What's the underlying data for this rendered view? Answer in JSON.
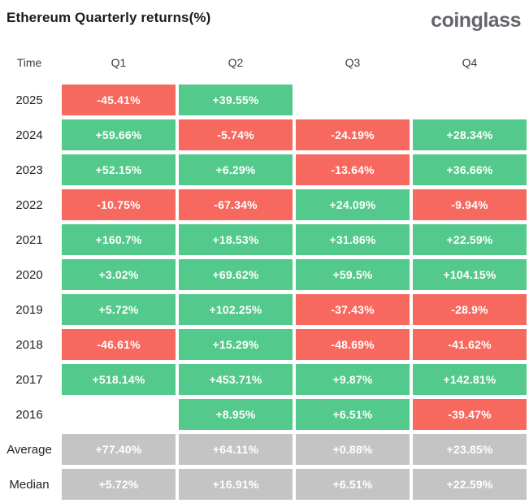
{
  "header": {
    "title": "Ethereum Quarterly returns(%)",
    "logo": "coinglass"
  },
  "colors": {
    "positive": "#53c98b",
    "negative": "#f7685f",
    "summary": "#c4c4c4",
    "cell_text": "#ffffff"
  },
  "table": {
    "columns": [
      "Time",
      "Q1",
      "Q2",
      "Q3",
      "Q4"
    ]
  },
  "chart_data": {
    "type": "table",
    "title": "Ethereum Quarterly returns(%)",
    "columns": [
      "Q1",
      "Q2",
      "Q3",
      "Q4"
    ],
    "unit": "%",
    "legend": "green = positive quarterly return, red = negative quarterly return, gray = summary rows",
    "rows": [
      {
        "label": "2025",
        "kind": "year",
        "display": [
          "-45.41%",
          "+39.55%",
          "",
          ""
        ],
        "values": [
          -45.41,
          39.55,
          null,
          null
        ]
      },
      {
        "label": "2024",
        "kind": "year",
        "display": [
          "+59.66%",
          "-5.74%",
          "-24.19%",
          "+28.34%"
        ],
        "values": [
          59.66,
          -5.74,
          -24.19,
          28.34
        ]
      },
      {
        "label": "2023",
        "kind": "year",
        "display": [
          "+52.15%",
          "+6.29%",
          "-13.64%",
          "+36.66%"
        ],
        "values": [
          52.15,
          6.29,
          -13.64,
          36.66
        ]
      },
      {
        "label": "2022",
        "kind": "year",
        "display": [
          "-10.75%",
          "-67.34%",
          "+24.09%",
          "-9.94%"
        ],
        "values": [
          -10.75,
          -67.34,
          24.09,
          -9.94
        ]
      },
      {
        "label": "2021",
        "kind": "year",
        "display": [
          "+160.7%",
          "+18.53%",
          "+31.86%",
          "+22.59%"
        ],
        "values": [
          160.7,
          18.53,
          31.86,
          22.59
        ]
      },
      {
        "label": "2020",
        "kind": "year",
        "display": [
          "+3.02%",
          "+69.62%",
          "+59.5%",
          "+104.15%"
        ],
        "values": [
          3.02,
          69.62,
          59.5,
          104.15
        ]
      },
      {
        "label": "2019",
        "kind": "year",
        "display": [
          "+5.72%",
          "+102.25%",
          "-37.43%",
          "-28.9%"
        ],
        "values": [
          5.72,
          102.25,
          -37.43,
          -28.9
        ]
      },
      {
        "label": "2018",
        "kind": "year",
        "display": [
          "-46.61%",
          "+15.29%",
          "-48.69%",
          "-41.62%"
        ],
        "values": [
          -46.61,
          15.29,
          -48.69,
          -41.62
        ]
      },
      {
        "label": "2017",
        "kind": "year",
        "display": [
          "+518.14%",
          "+453.71%",
          "+9.87%",
          "+142.81%"
        ],
        "values": [
          518.14,
          453.71,
          9.87,
          142.81
        ]
      },
      {
        "label": "2016",
        "kind": "year",
        "display": [
          "",
          "+8.95%",
          "+6.51%",
          "-39.47%"
        ],
        "values": [
          null,
          8.95,
          6.51,
          -39.47
        ]
      },
      {
        "label": "Average",
        "kind": "summary",
        "display": [
          "+77.40%",
          "+64.11%",
          "+0.88%",
          "+23.85%"
        ],
        "values": [
          77.4,
          64.11,
          0.88,
          23.85
        ]
      },
      {
        "label": "Median",
        "kind": "summary",
        "display": [
          "+5.72%",
          "+16.91%",
          "+6.51%",
          "+22.59%"
        ],
        "values": [
          5.72,
          16.91,
          6.51,
          22.59
        ]
      }
    ]
  }
}
